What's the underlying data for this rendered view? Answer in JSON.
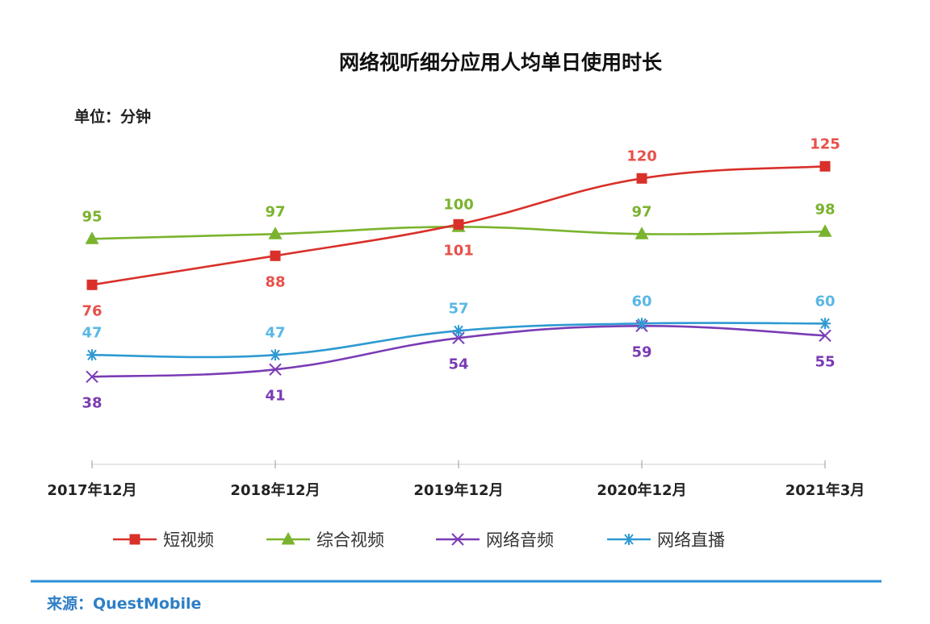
{
  "chart_data": {
    "type": "line",
    "title": "网络视听细分应用人均单日使用时长",
    "unit_label": "单位：分钟",
    "categories": [
      "2017年12月",
      "2018年12月",
      "2019年12月",
      "2020年12月",
      "2021年3月"
    ],
    "series": [
      {
        "name": "短视频",
        "color": "#d9302a",
        "marker": "square",
        "values": [
          76,
          88,
          101,
          120,
          125
        ],
        "label_pos": [
          "below",
          "below",
          "below",
          "above",
          "above"
        ]
      },
      {
        "name": "综合视频",
        "color": "#7ab32e",
        "marker": "triangle",
        "values": [
          95,
          97,
          100,
          97,
          98
        ],
        "label_pos": [
          "above",
          "above",
          "above",
          "above",
          "above"
        ]
      },
      {
        "name": "网络音频",
        "color": "#7a3cb5",
        "marker": "x",
        "values": [
          38,
          41,
          54,
          59,
          55
        ],
        "label_pos": [
          "below",
          "below",
          "below",
          "below",
          "below"
        ]
      },
      {
        "name": "网络直播",
        "color": "#2e9ad2",
        "marker": "star",
        "values": [
          47,
          47,
          57,
          60,
          60
        ],
        "label_pos": [
          "above",
          "above",
          "above",
          "above",
          "above"
        ]
      }
    ],
    "label_colors": {
      "短视频": "#e8504a",
      "综合视频": "#7ab32e",
      "网络音频": "#7a3cb5",
      "网络直播": "#5ab8e6"
    }
  },
  "footer": {
    "source_prefix": "来源：",
    "source_name": "QuestMobile",
    "colors": {
      "prefix": "#2e7fc6",
      "name": "#2e7fc6",
      "rule": "#2e8fd8"
    }
  }
}
